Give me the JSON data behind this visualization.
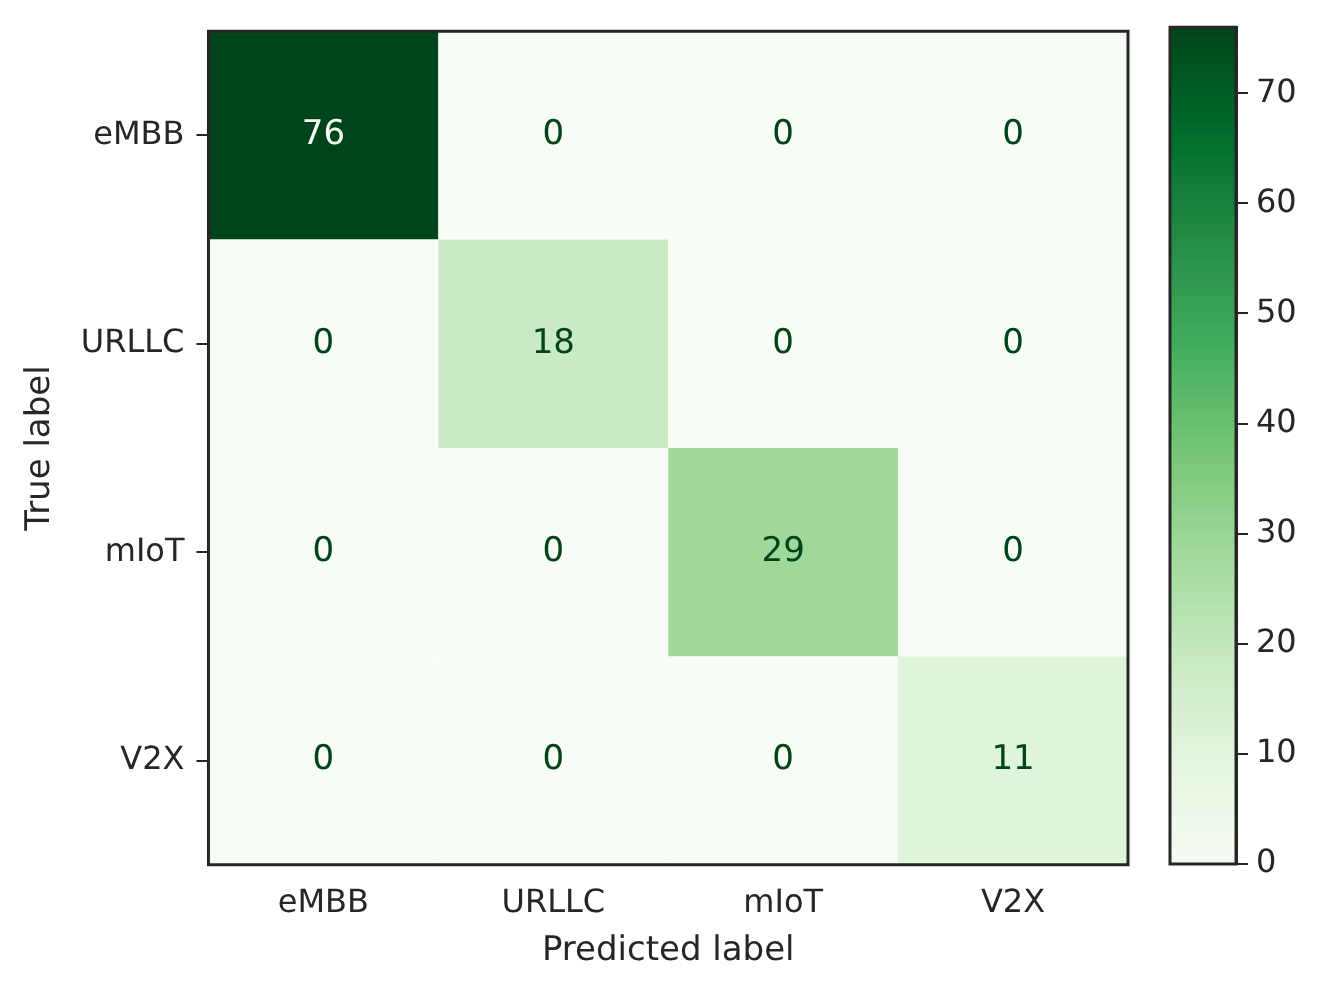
{
  "chart_data": {
    "type": "heatmap",
    "xlabel": "Predicted label",
    "ylabel": "True label",
    "categories": [
      "eMBB",
      "URLLC",
      "mIoT",
      "V2X"
    ],
    "y_categories": [
      "eMBB",
      "URLLC",
      "mIoT",
      "V2X"
    ],
    "cells": [
      [
        76,
        0,
        0,
        0
      ],
      [
        0,
        18,
        0,
        0
      ],
      [
        0,
        0,
        29,
        0
      ],
      [
        0,
        0,
        0,
        11
      ]
    ],
    "clim": [
      0,
      76
    ],
    "cticks": [
      0,
      10,
      20,
      30,
      40,
      50,
      60,
      70
    ],
    "data_labels": true,
    "grid": false
  }
}
